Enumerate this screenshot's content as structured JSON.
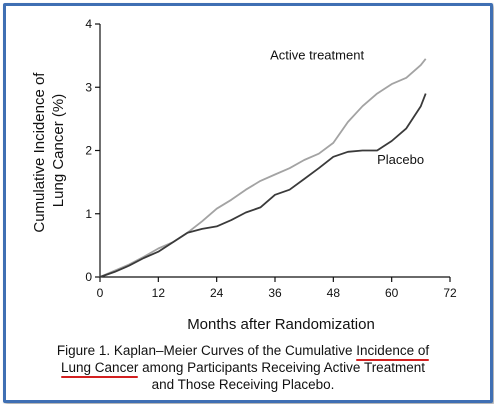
{
  "chart_data": {
    "type": "line",
    "xlabel": "Months after Randomization",
    "ylabel": "Cumulative Incidence of Lung Cancer (%)",
    "ylabel_lines": [
      "Cumulative Incidence of",
      "Lung Cancer (%)"
    ],
    "xlim": [
      0,
      72
    ],
    "ylim": [
      0,
      4
    ],
    "xticks": [
      0,
      12,
      24,
      36,
      48,
      60,
      72
    ],
    "yticks": [
      0,
      1,
      2,
      3,
      4
    ],
    "grid": false,
    "annotations": [
      "Active treatment",
      "Placebo"
    ],
    "series": [
      {
        "name": "Active treatment",
        "color": "#a3a3a3",
        "x": [
          0,
          3,
          6,
          9,
          12,
          15,
          18,
          21,
          24,
          27,
          30,
          33,
          36,
          39,
          42,
          45,
          48,
          51,
          54,
          57,
          60,
          63,
          66,
          67
        ],
        "y": [
          0,
          0.1,
          0.2,
          0.32,
          0.45,
          0.55,
          0.7,
          0.88,
          1.08,
          1.22,
          1.38,
          1.52,
          1.62,
          1.72,
          1.85,
          1.95,
          2.12,
          2.45,
          2.7,
          2.9,
          3.05,
          3.15,
          3.35,
          3.45
        ]
      },
      {
        "name": "Placebo",
        "color": "#3a3a3a",
        "x": [
          0,
          3,
          6,
          9,
          12,
          15,
          18,
          21,
          24,
          27,
          30,
          33,
          36,
          39,
          42,
          45,
          48,
          51,
          54,
          57,
          60,
          63,
          66,
          67
        ],
        "y": [
          0,
          0.08,
          0.18,
          0.3,
          0.4,
          0.55,
          0.7,
          0.76,
          0.8,
          0.9,
          1.02,
          1.1,
          1.3,
          1.38,
          1.55,
          1.72,
          1.9,
          1.98,
          2.0,
          2.0,
          2.15,
          2.35,
          2.7,
          2.9
        ]
      }
    ]
  },
  "caption": {
    "line1_before": "Figure 1. Kaplan–Meier Curves of the Cumulative ",
    "line1_highlight": "Incidence of",
    "line2_highlight": "Lung Cancer",
    "line2_after": " among Participants Receiving Active Treatment",
    "line3": "and Those Receiving Placebo.",
    "highlight_color": "#d32020"
  },
  "colors": {
    "frame": "#3f6fb3",
    "axis": "#111111"
  }
}
